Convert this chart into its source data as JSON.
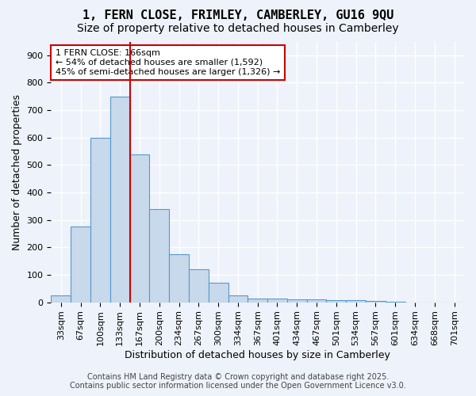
{
  "title_line1": "1, FERN CLOSE, FRIMLEY, CAMBERLEY, GU16 9QU",
  "title_line2": "Size of property relative to detached houses in Camberley",
  "xlabel": "Distribution of detached houses by size in Camberley",
  "ylabel": "Number of detached properties",
  "bar_color": "#c8d9eb",
  "bar_edge_color": "#5599cc",
  "background_color": "#eef2fa",
  "grid_color": "#ffffff",
  "bin_labels": [
    "33sqm",
    "67sqm",
    "100sqm",
    "133sqm",
    "167sqm",
    "200sqm",
    "234sqm",
    "267sqm",
    "300sqm",
    "334sqm",
    "367sqm",
    "401sqm",
    "434sqm",
    "467sqm",
    "501sqm",
    "534sqm",
    "567sqm",
    "601sqm",
    "634sqm",
    "668sqm",
    "701sqm"
  ],
  "bar_heights": [
    25,
    275,
    600,
    750,
    540,
    340,
    175,
    120,
    70,
    25,
    15,
    15,
    10,
    10,
    8,
    8,
    5,
    2,
    0,
    0,
    0
  ],
  "ylim": [
    0,
    950
  ],
  "yticks": [
    0,
    100,
    200,
    300,
    400,
    500,
    600,
    700,
    800,
    900
  ],
  "vline_x": 3.5,
  "vline_color": "#cc0000",
  "annotation_text": "1 FERN CLOSE: 166sqm\n← 54% of detached houses are smaller (1,592)\n45% of semi-detached houses are larger (1,326) →",
  "annotation_box_color": "#ffffff",
  "annotation_box_edge_color": "#cc0000",
  "footer_line1": "Contains HM Land Registry data © Crown copyright and database right 2025.",
  "footer_line2": "Contains public sector information licensed under the Open Government Licence v3.0.",
  "title_fontsize": 11,
  "subtitle_fontsize": 10,
  "axis_label_fontsize": 9,
  "tick_fontsize": 8,
  "annotation_fontsize": 8,
  "footer_fontsize": 7
}
